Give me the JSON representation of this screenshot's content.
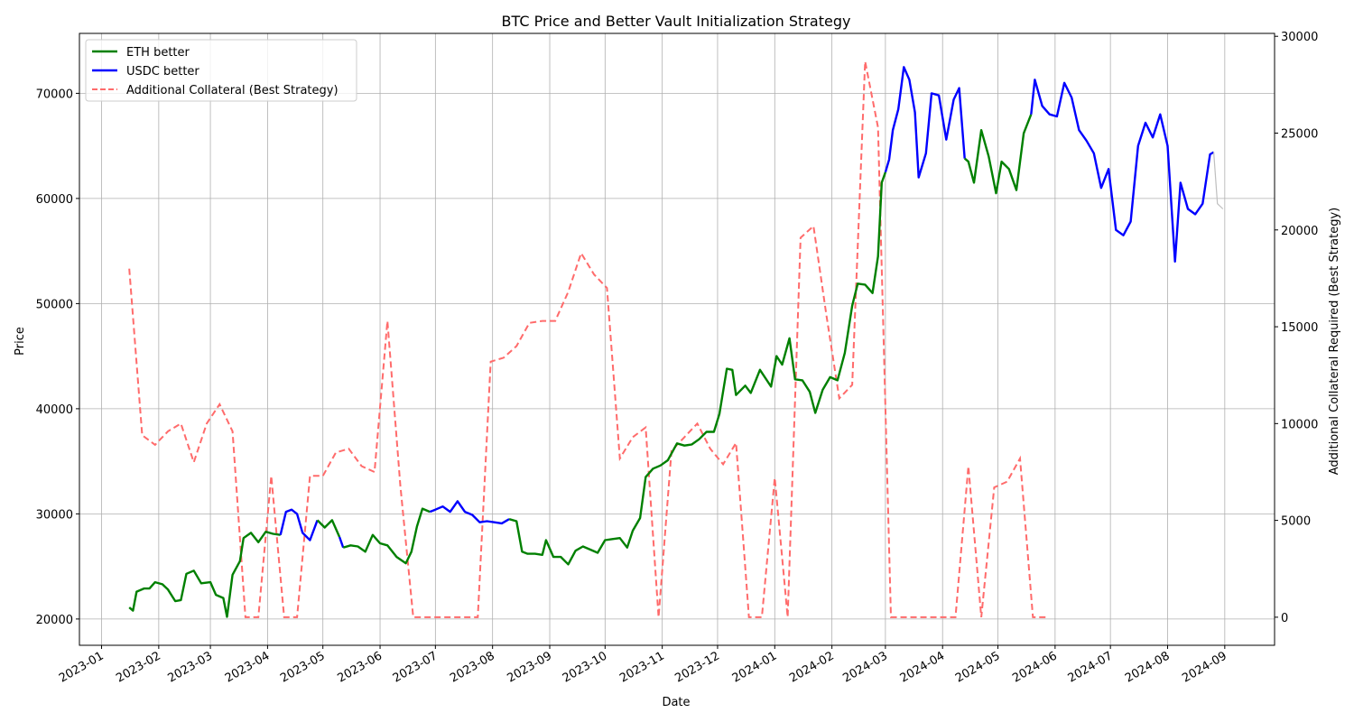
{
  "chart_data": {
    "type": "line",
    "title": "BTC Price and Better Vault Initialization Strategy",
    "xlabel": "Date",
    "ylabel": "Price",
    "y2label": "Additional Collateral Required (Best Strategy)",
    "xlim": [
      "2022-12-20",
      "2024-09-28"
    ],
    "ylim": [
      17500,
      75700
    ],
    "y2lim": [
      -1450,
      30150
    ],
    "x_ticks": [
      "2023-01",
      "2023-02",
      "2023-03",
      "2023-04",
      "2023-05",
      "2023-06",
      "2023-07",
      "2023-08",
      "2023-09",
      "2023-10",
      "2023-11",
      "2023-12",
      "2024-01",
      "2024-02",
      "2024-03",
      "2024-04",
      "2024-05",
      "2024-06",
      "2024-07",
      "2024-08",
      "2024-09"
    ],
    "y_ticks": [
      20000,
      30000,
      40000,
      50000,
      60000,
      70000
    ],
    "y2_ticks": [
      0,
      5000,
      10000,
      15000,
      20000,
      25000,
      30000
    ],
    "grid": true,
    "legend_position": "top-left",
    "colors": {
      "eth": "#008000",
      "usdc": "#0000ff",
      "collateral": "#ff6b6b",
      "unassigned": "#bfbfbf"
    },
    "legend": [
      {
        "label": "ETH better",
        "series": "eth"
      },
      {
        "label": "USDC better",
        "series": "usdc"
      },
      {
        "label": "Additional Collateral (Best Strategy)",
        "series": "collateral"
      }
    ],
    "btc_price": [
      [
        "2023-01-16",
        21100,
        "eth"
      ],
      [
        "2023-01-18",
        20800,
        "eth"
      ],
      [
        "2023-01-20",
        22600,
        "eth"
      ],
      [
        "2023-01-24",
        22900,
        "eth"
      ],
      [
        "2023-01-27",
        22900,
        "eth"
      ],
      [
        "2023-01-30",
        23500,
        "eth"
      ],
      [
        "2023-02-03",
        23300,
        "eth"
      ],
      [
        "2023-02-06",
        22800,
        "eth"
      ],
      [
        "2023-02-10",
        21700,
        "eth"
      ],
      [
        "2023-02-13",
        21800,
        "eth"
      ],
      [
        "2023-02-16",
        24300,
        "eth"
      ],
      [
        "2023-02-20",
        24600,
        "eth"
      ],
      [
        "2023-02-24",
        23400,
        "eth"
      ],
      [
        "2023-03-01",
        23500,
        "eth"
      ],
      [
        "2023-03-04",
        22300,
        "eth"
      ],
      [
        "2023-03-08",
        22000,
        "eth"
      ],
      [
        "2023-03-10",
        20200,
        "eth"
      ],
      [
        "2023-03-13",
        24200,
        "eth"
      ],
      [
        "2023-03-17",
        25500,
        "eth"
      ],
      [
        "2023-03-19",
        27700,
        "eth"
      ],
      [
        "2023-03-23",
        28200,
        "eth"
      ],
      [
        "2023-03-27",
        27300,
        "eth"
      ],
      [
        "2023-03-31",
        28300,
        "eth"
      ],
      [
        "2023-04-04",
        28100,
        "eth"
      ],
      [
        "2023-04-08",
        28000,
        "eth"
      ],
      [
        "2023-04-11",
        30200,
        "usdc"
      ],
      [
        "2023-04-14",
        30400,
        "usdc"
      ],
      [
        "2023-04-17",
        30000,
        "usdc"
      ],
      [
        "2023-04-20",
        28200,
        "usdc"
      ],
      [
        "2023-04-24",
        27500,
        "usdc"
      ],
      [
        "2023-04-28",
        29400,
        "usdc"
      ],
      [
        "2023-05-02",
        28700,
        "eth"
      ],
      [
        "2023-05-06",
        29400,
        "eth"
      ],
      [
        "2023-05-10",
        27800,
        "eth"
      ],
      [
        "2023-05-12",
        26800,
        "usdc"
      ],
      [
        "2023-05-16",
        27000,
        "eth"
      ],
      [
        "2023-05-20",
        26900,
        "eth"
      ],
      [
        "2023-05-24",
        26400,
        "eth"
      ],
      [
        "2023-05-28",
        28000,
        "eth"
      ],
      [
        "2023-06-01",
        27200,
        "eth"
      ],
      [
        "2023-06-05",
        27000,
        "eth"
      ],
      [
        "2023-06-10",
        25900,
        "eth"
      ],
      [
        "2023-06-15",
        25300,
        "eth"
      ],
      [
        "2023-06-18",
        26400,
        "eth"
      ],
      [
        "2023-06-21",
        28800,
        "eth"
      ],
      [
        "2023-06-24",
        30500,
        "eth"
      ],
      [
        "2023-06-28",
        30200,
        "eth"
      ],
      [
        "2023-07-01",
        30400,
        "usdc"
      ],
      [
        "2023-07-05",
        30700,
        "usdc"
      ],
      [
        "2023-07-09",
        30200,
        "usdc"
      ],
      [
        "2023-07-13",
        31200,
        "usdc"
      ],
      [
        "2023-07-17",
        30200,
        "usdc"
      ],
      [
        "2023-07-21",
        29900,
        "usdc"
      ],
      [
        "2023-07-25",
        29200,
        "usdc"
      ],
      [
        "2023-07-29",
        29300,
        "usdc"
      ],
      [
        "2023-08-02",
        29200,
        "usdc"
      ],
      [
        "2023-08-06",
        29100,
        "usdc"
      ],
      [
        "2023-08-10",
        29500,
        "usdc"
      ],
      [
        "2023-08-14",
        29300,
        "eth"
      ],
      [
        "2023-08-17",
        26400,
        "eth"
      ],
      [
        "2023-08-20",
        26200,
        "eth"
      ],
      [
        "2023-08-24",
        26200,
        "eth"
      ],
      [
        "2023-08-28",
        26100,
        "eth"
      ],
      [
        "2023-08-30",
        27500,
        "eth"
      ],
      [
        "2023-09-03",
        25900,
        "eth"
      ],
      [
        "2023-09-07",
        25900,
        "eth"
      ],
      [
        "2023-09-11",
        25200,
        "eth"
      ],
      [
        "2023-09-15",
        26500,
        "eth"
      ],
      [
        "2023-09-19",
        26900,
        "eth"
      ],
      [
        "2023-09-23",
        26600,
        "eth"
      ],
      [
        "2023-09-27",
        26300,
        "eth"
      ],
      [
        "2023-10-01",
        27500,
        "eth"
      ],
      [
        "2023-10-05",
        27600,
        "eth"
      ],
      [
        "2023-10-09",
        27700,
        "eth"
      ],
      [
        "2023-10-13",
        26800,
        "eth"
      ],
      [
        "2023-10-16",
        28400,
        "eth"
      ],
      [
        "2023-10-20",
        29600,
        "eth"
      ],
      [
        "2023-10-23",
        33500,
        "eth"
      ],
      [
        "2023-10-27",
        34300,
        "eth"
      ],
      [
        "2023-10-31",
        34600,
        "eth"
      ],
      [
        "2023-11-04",
        35100,
        "eth"
      ],
      [
        "2023-11-09",
        36700,
        "eth"
      ],
      [
        "2023-11-13",
        36500,
        "eth"
      ],
      [
        "2023-11-17",
        36600,
        "eth"
      ],
      [
        "2023-11-21",
        37100,
        "eth"
      ],
      [
        "2023-11-25",
        37800,
        "eth"
      ],
      [
        "2023-11-29",
        37800,
        "eth"
      ],
      [
        "2023-12-02",
        39500,
        "eth"
      ],
      [
        "2023-12-06",
        43800,
        "eth"
      ],
      [
        "2023-12-09",
        43700,
        "eth"
      ],
      [
        "2023-12-11",
        41300,
        "eth"
      ],
      [
        "2023-12-16",
        42200,
        "eth"
      ],
      [
        "2023-12-19",
        41500,
        "eth"
      ],
      [
        "2023-12-24",
        43700,
        "eth"
      ],
      [
        "2023-12-30",
        42100,
        "eth"
      ],
      [
        "2024-01-02",
        45000,
        "eth"
      ],
      [
        "2024-01-05",
        44200,
        "eth"
      ],
      [
        "2024-01-09",
        46700,
        "eth"
      ],
      [
        "2024-01-12",
        42800,
        "eth"
      ],
      [
        "2024-01-16",
        42700,
        "eth"
      ],
      [
        "2024-01-20",
        41600,
        "eth"
      ],
      [
        "2024-01-23",
        39600,
        "eth"
      ],
      [
        "2024-01-27",
        41800,
        "eth"
      ],
      [
        "2024-01-31",
        43000,
        "eth"
      ],
      [
        "2024-02-04",
        42700,
        "eth"
      ],
      [
        "2024-02-08",
        45300,
        "eth"
      ],
      [
        "2024-02-12",
        49800,
        "eth"
      ],
      [
        "2024-02-15",
        51900,
        "eth"
      ],
      [
        "2024-02-19",
        51800,
        "eth"
      ],
      [
        "2024-02-23",
        51000,
        "eth"
      ],
      [
        "2024-02-26",
        54500,
        "eth"
      ],
      [
        "2024-02-28",
        61500,
        "eth"
      ],
      [
        "2024-03-01",
        62500,
        "eth"
      ],
      [
        "2024-03-03",
        63700,
        "usdc"
      ],
      [
        "2024-03-05",
        66500,
        "usdc"
      ],
      [
        "2024-03-08",
        68500,
        "usdc"
      ],
      [
        "2024-03-11",
        72500,
        "usdc"
      ],
      [
        "2024-03-14",
        71300,
        "usdc"
      ],
      [
        "2024-03-17",
        68200,
        "usdc"
      ],
      [
        "2024-03-19",
        62000,
        "usdc"
      ],
      [
        "2024-03-23",
        64300,
        "usdc"
      ],
      [
        "2024-03-26",
        70000,
        "usdc"
      ],
      [
        "2024-03-30",
        69800,
        "usdc"
      ],
      [
        "2024-04-03",
        65600,
        "usdc"
      ],
      [
        "2024-04-07",
        69400,
        "usdc"
      ],
      [
        "2024-04-10",
        70500,
        "usdc"
      ],
      [
        "2024-04-13",
        63800,
        "usdc"
      ],
      [
        "2024-04-15",
        63500,
        "eth"
      ],
      [
        "2024-04-18",
        61500,
        "eth"
      ],
      [
        "2024-04-22",
        66500,
        "eth"
      ],
      [
        "2024-04-26",
        64000,
        "eth"
      ],
      [
        "2024-04-30",
        60500,
        "eth"
      ],
      [
        "2024-05-03",
        63500,
        "eth"
      ],
      [
        "2024-05-07",
        62800,
        "eth"
      ],
      [
        "2024-05-11",
        60800,
        "eth"
      ],
      [
        "2024-05-15",
        66200,
        "eth"
      ],
      [
        "2024-05-19",
        68000,
        "eth"
      ],
      [
        "2024-05-21",
        71300,
        "usdc"
      ],
      [
        "2024-05-25",
        68800,
        "usdc"
      ],
      [
        "2024-05-29",
        68000,
        "usdc"
      ],
      [
        "2024-06-02",
        67800,
        "usdc"
      ],
      [
        "2024-06-06",
        71000,
        "usdc"
      ],
      [
        "2024-06-10",
        69600,
        "usdc"
      ],
      [
        "2024-06-14",
        66500,
        "usdc"
      ],
      [
        "2024-06-18",
        65500,
        "usdc"
      ],
      [
        "2024-06-22",
        64300,
        "usdc"
      ],
      [
        "2024-06-26",
        61000,
        "usdc"
      ],
      [
        "2024-06-30",
        62800,
        "usdc"
      ],
      [
        "2024-07-04",
        57000,
        "usdc"
      ],
      [
        "2024-07-08",
        56500,
        "usdc"
      ],
      [
        "2024-07-12",
        57800,
        "usdc"
      ],
      [
        "2024-07-16",
        65000,
        "usdc"
      ],
      [
        "2024-07-20",
        67200,
        "usdc"
      ],
      [
        "2024-07-24",
        65800,
        "usdc"
      ],
      [
        "2024-07-28",
        68000,
        "usdc"
      ],
      [
        "2024-08-01",
        65000,
        "usdc"
      ],
      [
        "2024-08-05",
        54000,
        "usdc"
      ],
      [
        "2024-08-08",
        61500,
        "usdc"
      ],
      [
        "2024-08-12",
        59000,
        "usdc"
      ],
      [
        "2024-08-16",
        58500,
        "usdc"
      ],
      [
        "2024-08-20",
        59500,
        "usdc"
      ],
      [
        "2024-08-24",
        64200,
        "usdc"
      ],
      [
        "2024-08-26",
        64400,
        "usdc"
      ],
      [
        "2024-08-28",
        59500,
        "unassigned"
      ],
      [
        "2024-08-31",
        59000,
        "unassigned"
      ]
    ],
    "collateral": [
      [
        "2023-01-16",
        18000
      ],
      [
        "2023-01-23",
        9400
      ],
      [
        "2023-01-30",
        8900
      ],
      [
        "2023-02-06",
        9600
      ],
      [
        "2023-02-13",
        10000
      ],
      [
        "2023-02-20",
        8000
      ],
      [
        "2023-02-27",
        10000
      ],
      [
        "2023-03-06",
        11000
      ],
      [
        "2023-03-13",
        9600
      ],
      [
        "2023-03-20",
        0
      ],
      [
        "2023-03-27",
        0
      ],
      [
        "2023-04-03",
        7300
      ],
      [
        "2023-04-10",
        0
      ],
      [
        "2023-04-17",
        0
      ],
      [
        "2023-04-24",
        7300
      ],
      [
        "2023-05-01",
        7300
      ],
      [
        "2023-05-08",
        8500
      ],
      [
        "2023-05-15",
        8700
      ],
      [
        "2023-05-22",
        7800
      ],
      [
        "2023-05-29",
        7500
      ],
      [
        "2023-06-05",
        15300
      ],
      [
        "2023-06-12",
        6800
      ],
      [
        "2023-06-19",
        0
      ],
      [
        "2023-06-26",
        0
      ],
      [
        "2023-07-03",
        0
      ],
      [
        "2023-07-10",
        0
      ],
      [
        "2023-07-17",
        0
      ],
      [
        "2023-07-24",
        0
      ],
      [
        "2023-07-31",
        13200
      ],
      [
        "2023-08-07",
        13400
      ],
      [
        "2023-08-14",
        14000
      ],
      [
        "2023-08-21",
        15200
      ],
      [
        "2023-08-28",
        15300
      ],
      [
        "2023-09-04",
        15300
      ],
      [
        "2023-09-11",
        16800
      ],
      [
        "2023-09-18",
        18800
      ],
      [
        "2023-09-25",
        17700
      ],
      [
        "2023-10-02",
        17000
      ],
      [
        "2023-10-09",
        8200
      ],
      [
        "2023-10-16",
        9300
      ],
      [
        "2023-10-23",
        9800
      ],
      [
        "2023-10-30",
        0
      ],
      [
        "2023-11-06",
        8600
      ],
      [
        "2023-11-13",
        9300
      ],
      [
        "2023-11-20",
        10000
      ],
      [
        "2023-11-27",
        8700
      ],
      [
        "2023-12-04",
        7900
      ],
      [
        "2023-12-11",
        9000
      ],
      [
        "2023-12-18",
        0
      ],
      [
        "2023-12-25",
        0
      ],
      [
        "2024-01-01",
        7200
      ],
      [
        "2024-01-08",
        0
      ],
      [
        "2024-01-15",
        19600
      ],
      [
        "2024-01-22",
        20200
      ],
      [
        "2024-01-29",
        15600
      ],
      [
        "2024-02-05",
        11300
      ],
      [
        "2024-02-12",
        12000
      ],
      [
        "2024-02-19",
        28700
      ],
      [
        "2024-02-26",
        25300
      ],
      [
        "2024-03-04",
        0
      ],
      [
        "2024-03-11",
        0
      ],
      [
        "2024-03-18",
        0
      ],
      [
        "2024-03-25",
        0
      ],
      [
        "2024-04-01",
        0
      ],
      [
        "2024-04-08",
        0
      ],
      [
        "2024-04-15",
        7800
      ],
      [
        "2024-04-22",
        0
      ],
      [
        "2024-04-29",
        6700
      ],
      [
        "2024-05-06",
        7000
      ],
      [
        "2024-05-13",
        8200
      ],
      [
        "2024-05-20",
        0
      ],
      [
        "2024-05-27",
        0
      ]
    ]
  }
}
